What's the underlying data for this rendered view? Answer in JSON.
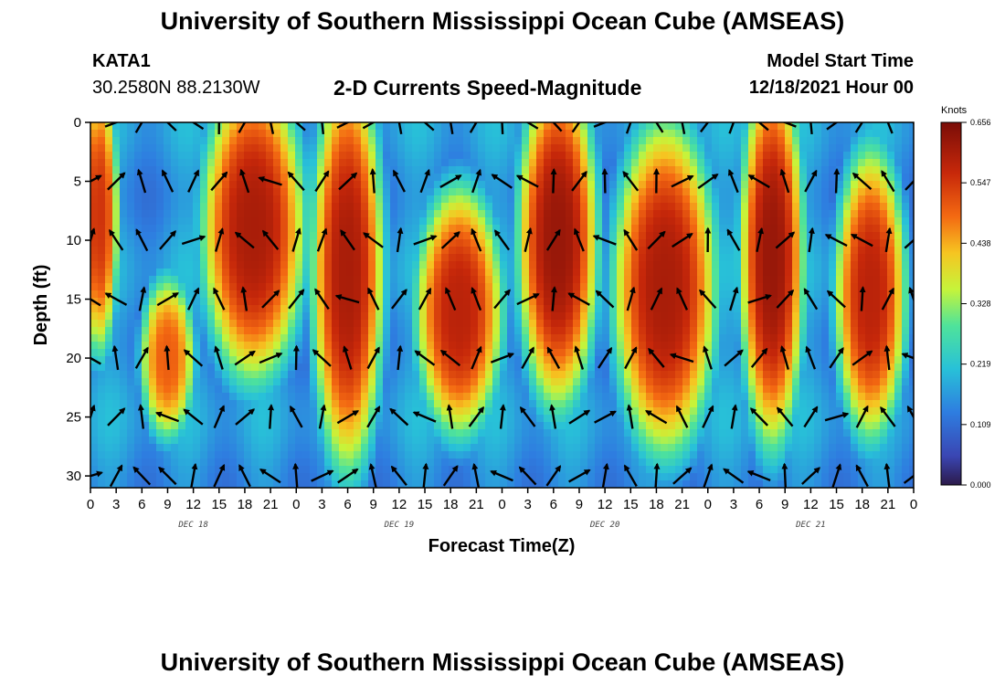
{
  "header": {
    "title": "University of Southern Mississippi Ocean Cube (AMSEAS)",
    "station_id": "KATA1",
    "coordinates": "30.2580N  88.2130W",
    "subtitle": "2-D Currents Speed-Magnitude",
    "model_start_label": "Model Start Time",
    "model_start_value": "12/18/2021 Hour 00"
  },
  "footer": {
    "title": "University of Southern Mississippi Ocean Cube (AMSEAS)"
  },
  "chart_data": {
    "type": "heatmap",
    "title": "2-D Currents Speed-Magnitude",
    "xlabel": "Forecast Time(Z)",
    "ylabel": "Depth (ft)",
    "xlim": [
      0,
      96
    ],
    "ylim": [
      31,
      0
    ],
    "x_tick_labels": [
      "0",
      "3",
      "6",
      "9",
      "12",
      "15",
      "18",
      "21",
      "0",
      "3",
      "6",
      "9",
      "12",
      "15",
      "18",
      "21",
      "0",
      "3",
      "6",
      "9",
      "12",
      "15",
      "18",
      "21",
      "0",
      "3",
      "6",
      "9",
      "12",
      "15",
      "18",
      "21",
      "0"
    ],
    "y_ticks": [
      0,
      5,
      10,
      15,
      20,
      25,
      30
    ],
    "day_labels": [
      {
        "hour": 12,
        "label": "DEC 18"
      },
      {
        "hour": 36,
        "label": "DEC 19"
      },
      {
        "hour": 60,
        "label": "DEC 20"
      },
      {
        "hour": 84,
        "label": "DEC 21"
      }
    ],
    "colorbar": {
      "unit": "Knots",
      "ticks": [
        "0.000",
        "0.109",
        "0.219",
        "0.328",
        "0.438",
        "0.547",
        "0.656"
      ],
      "min": 0.0,
      "max": 0.656
    },
    "speed_bands": [
      {
        "start_h": 0,
        "end_h": 2,
        "depth_top": 0,
        "depth_bottom": 16,
        "speed": 0.55
      },
      {
        "start_h": 7,
        "end_h": 11,
        "depth_top": 16,
        "depth_bottom": 24,
        "speed": 0.5
      },
      {
        "start_h": 14,
        "end_h": 24,
        "depth_top": 0,
        "depth_bottom": 18,
        "speed": 0.6
      },
      {
        "start_h": 27,
        "end_h": 33,
        "depth_top": 0,
        "depth_bottom": 25,
        "speed": 0.6
      },
      {
        "start_h": 39,
        "end_h": 47,
        "depth_top": 9,
        "depth_bottom": 23,
        "speed": 0.58
      },
      {
        "start_h": 51,
        "end_h": 58,
        "depth_top": 0,
        "depth_bottom": 20,
        "speed": 0.62
      },
      {
        "start_h": 62,
        "end_h": 72,
        "depth_top": 4,
        "depth_bottom": 24,
        "speed": 0.6
      },
      {
        "start_h": 77,
        "end_h": 82,
        "depth_top": 0,
        "depth_bottom": 23,
        "speed": 0.62
      },
      {
        "start_h": 88,
        "end_h": 94,
        "depth_top": 6,
        "depth_bottom": 23,
        "speed": 0.58
      }
    ],
    "vector_field": {
      "x_hours": [
        0,
        3,
        6,
        9,
        12,
        15,
        18,
        21,
        24,
        27,
        30,
        33,
        36,
        39,
        42,
        45,
        48,
        51,
        54,
        57,
        60,
        63,
        66,
        69,
        72,
        75,
        78,
        81,
        84,
        87,
        90,
        93,
        96
      ],
      "depths_ft": [
        0,
        5,
        10,
        15,
        20,
        25,
        30
      ],
      "note": "current direction arrows on a regular time-depth grid"
    }
  }
}
